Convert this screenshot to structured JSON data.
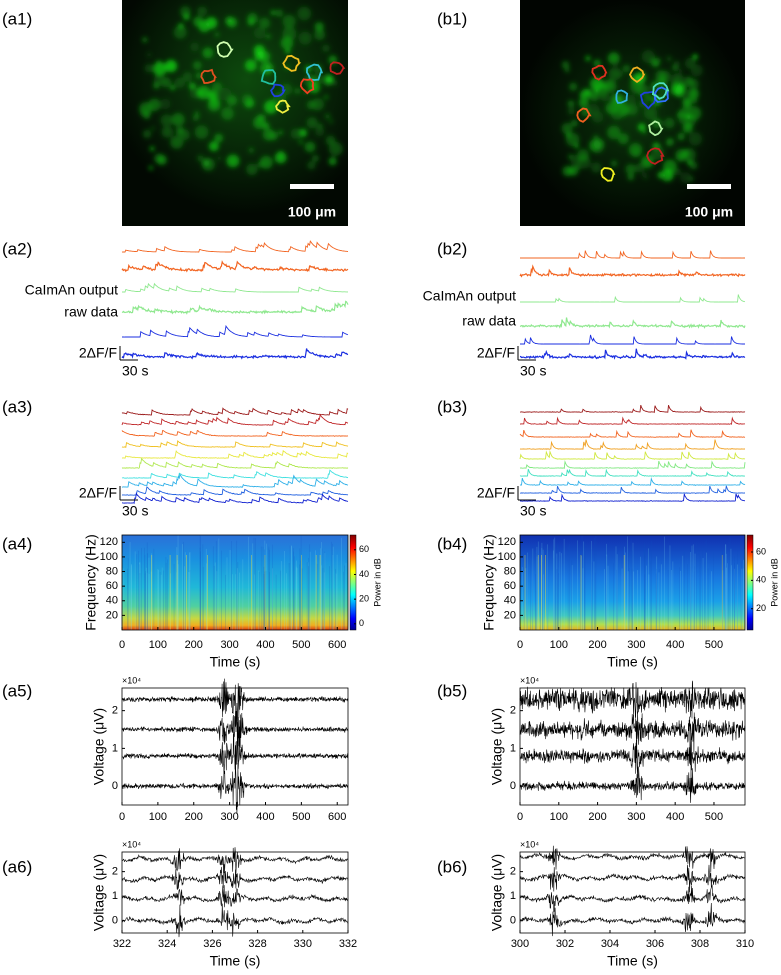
{
  "images": [
    {
      "label": "(a1)",
      "scale_bar": "100 μm"
    },
    {
      "label": "(b1)",
      "scale_bar": "100 μm"
    }
  ],
  "traces": [
    {
      "label": "(a2)",
      "annotations": [
        "CaImAn output",
        "raw data"
      ],
      "scale_y": "2ΔF/F",
      "scale_x": "30 s"
    },
    {
      "label": "(b2)",
      "annotations": [
        "CaImAn output",
        "raw data"
      ],
      "scale_y": "2ΔF/F",
      "scale_x": "30 s"
    },
    {
      "label": "(a3)",
      "scale_y": "2ΔF/F",
      "scale_x": "30 s"
    },
    {
      "label": "(b3)",
      "scale_y": "2ΔF/F",
      "scale_x": "30 s"
    }
  ],
  "spectrograms": [
    {
      "label": "(a4)",
      "ylabel": "Frequency (Hz)",
      "xlabel": "Time (s)",
      "xlim": [
        0,
        630
      ],
      "xticks": [
        0,
        100,
        200,
        300,
        400,
        500,
        600
      ],
      "ylim": [
        0,
        130
      ],
      "yticks": [
        20,
        40,
        60,
        80,
        100,
        120
      ],
      "colorbar_label": "Power in dB",
      "clim": [
        -5,
        72
      ],
      "cticks": [
        0,
        20,
        40,
        60
      ]
    },
    {
      "label": "(b4)",
      "ylabel": "Frequency (Hz)",
      "xlabel": "Time (s)",
      "xlim": [
        0,
        580
      ],
      "xticks": [
        0,
        100,
        200,
        300,
        400,
        500
      ],
      "ylim": [
        0,
        130
      ],
      "yticks": [
        20,
        40,
        60,
        80,
        100,
        120
      ],
      "colorbar_label": "Power in dB",
      "clim": [
        5,
        72
      ],
      "cticks": [
        20,
        40,
        60
      ]
    }
  ],
  "voltages": [
    {
      "label": "(a5)",
      "ylabel": "Voltage (μV)",
      "multiplier": "×10⁴",
      "xlim": [
        0,
        630
      ],
      "xticks": [
        0,
        100,
        200,
        300,
        400,
        500,
        600
      ],
      "ylim": [
        -0.5,
        2.6
      ],
      "yticks": [
        0,
        1,
        2
      ]
    },
    {
      "label": "(b5)",
      "ylabel": "Voltage (μV)",
      "multiplier": "×10⁴",
      "xlim": [
        0,
        580
      ],
      "xticks": [
        0,
        100,
        200,
        300,
        400,
        500
      ],
      "ylim": [
        -0.5,
        2.6
      ],
      "yticks": [
        0,
        1,
        2
      ]
    },
    {
      "label": "(a6)",
      "ylabel": "Voltage (μV)",
      "multiplier": "×10⁴",
      "xlabel": "Time (s)",
      "xlim": [
        322,
        332
      ],
      "xticks": [
        322,
        324,
        326,
        328,
        330,
        332
      ],
      "ylim": [
        -0.5,
        2.8
      ],
      "yticks": [
        0,
        1,
        2
      ]
    },
    {
      "label": "(b6)",
      "ylabel": "Voltage (μV)",
      "multiplier": "×10⁴",
      "xlabel": "Time (s)",
      "xlim": [
        300,
        310
      ],
      "xticks": [
        300,
        302,
        304,
        306,
        308,
        310
      ],
      "ylim": [
        -0.5,
        2.8
      ],
      "yticks": [
        0,
        1,
        2
      ]
    }
  ]
}
